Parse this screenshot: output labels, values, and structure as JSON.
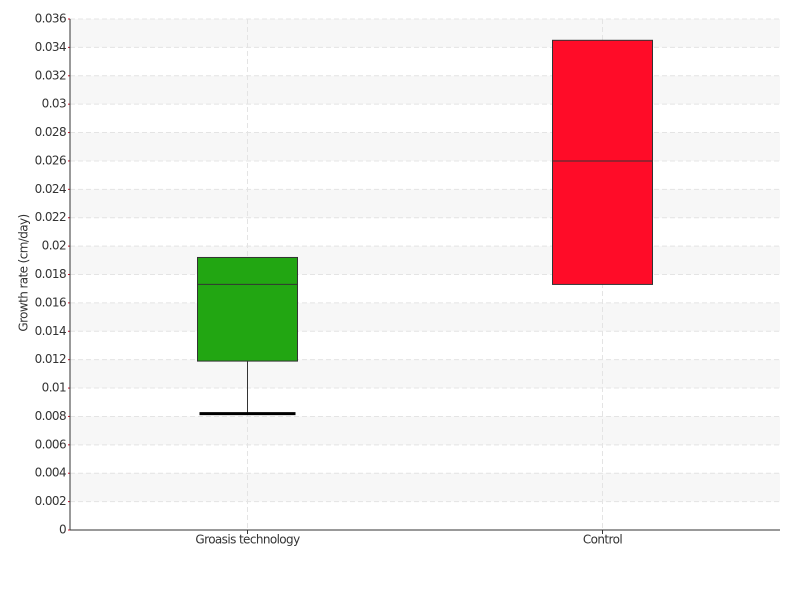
{
  "chart_data": {
    "type": "box",
    "y_label": "Growth rate (cm/day)",
    "categories": [
      "Groasis technology",
      "Control"
    ],
    "series": [
      {
        "name": "Groasis technology",
        "color": "#22a612",
        "min": 0.0082,
        "q1": 0.0119,
        "median": 0.0173,
        "q3": 0.0192,
        "max": 0.0192
      },
      {
        "name": "Control",
        "color": "#ff0c28",
        "min": 0.0173,
        "q1": 0.0173,
        "median": 0.026,
        "q3": 0.0345,
        "max": 0.0345
      }
    ],
    "ylim": [
      0,
      0.036
    ],
    "yticks": [
      0,
      0.002,
      0.004,
      0.006,
      0.008,
      0.01,
      0.012,
      0.014,
      0.016,
      0.018,
      0.02,
      0.022,
      0.024,
      0.026,
      0.028,
      0.03,
      0.032,
      0.034,
      0.036
    ],
    "grid": true
  }
}
